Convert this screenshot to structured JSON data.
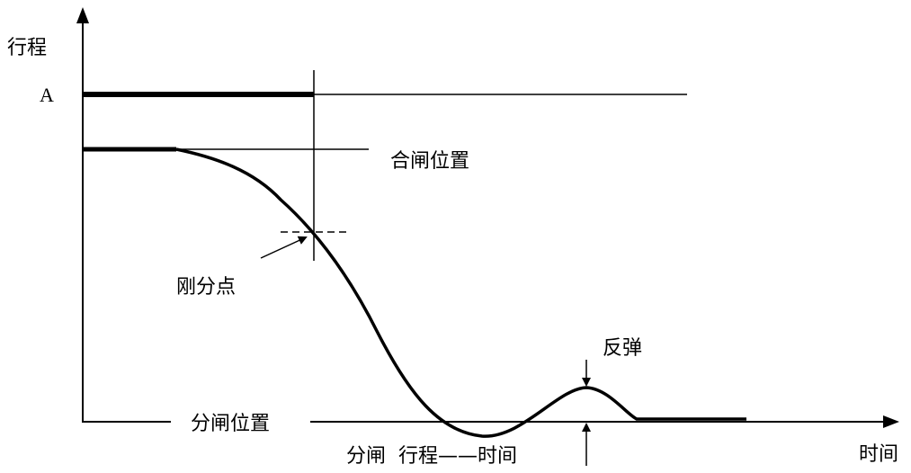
{
  "labels": {
    "y_axis": "行程",
    "x_axis": "时间",
    "level_a": "A",
    "closed_position": "合闸位置",
    "open_position": "分闸位置",
    "contact_separation_point": "刚分点",
    "rebound": "反弹",
    "caption": "分闸  行程——时间"
  }
}
